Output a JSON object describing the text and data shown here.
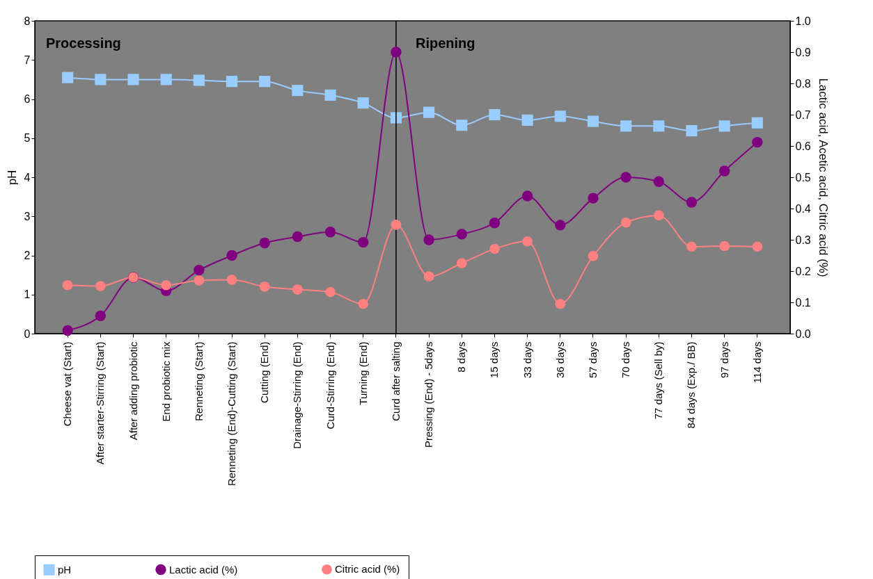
{
  "chart_data": {
    "type": "line",
    "ylabel": "pH",
    "y2label": "Lactic acid, Acetic acid, Citric acid (%)",
    "categories": [
      "Cheese vat (Start)",
      "After starter-Stirring (Start)",
      "After adding probiotic",
      "End probiotic mix",
      "Renneting (Start)",
      "Renneting (End)-Cutting (Start)",
      "Cutting (End)",
      "Drainage-Stirring (End)",
      "Curd-Stirring (End)",
      "Turning (End)",
      "Curd after salting",
      "Pressing (End) - 5days",
      "8 days",
      "15 days",
      "33 days",
      "36 days",
      "57 days",
      "70 days",
      "77 days (Sell by)",
      "84 days (Exp./ BB)",
      "97 days",
      "114 days"
    ],
    "series": [
      {
        "name": "pH",
        "color": "#99ccff",
        "marker": "square",
        "values": [
          6.55,
          6.5,
          6.5,
          6.5,
          6.48,
          6.45,
          6.45,
          6.22,
          6.1,
          5.9,
          5.52,
          5.66,
          5.33,
          5.6,
          5.46,
          5.56,
          5.43,
          5.31,
          5.31,
          5.19,
          5.31,
          5.39
        ]
      },
      {
        "name": "Lactic acid (%)",
        "color": "#800080",
        "marker": "circle",
        "axis": "y2",
        "values": [
          0.01,
          0.057,
          0.18,
          0.137,
          0.203,
          0.25,
          0.29,
          0.31,
          0.325,
          0.292,
          0.9,
          0.3,
          0.318,
          0.354,
          0.44,
          0.347,
          0.433,
          0.5,
          0.486,
          0.42,
          0.52,
          0.612
        ]
      },
      {
        "name": "Citric acid (%)",
        "color": "#ff8080",
        "marker": "circle",
        "axis": "y2",
        "values": [
          0.155,
          0.152,
          0.18,
          0.155,
          0.17,
          0.172,
          0.15,
          0.141,
          0.133,
          0.095,
          0.348,
          0.183,
          0.225,
          0.271,
          0.295,
          0.095,
          0.248,
          0.355,
          0.378,
          0.278,
          0.28,
          0.278
        ]
      }
    ],
    "ylim": [
      0,
      8
    ],
    "yticks": [
      0,
      1,
      2,
      3,
      4,
      5,
      6,
      7,
      8
    ],
    "y2lim": [
      0,
      1
    ],
    "y2ticks": [
      {
        "value": 0,
        "label": "0.0"
      },
      0.1,
      0.2,
      0.3,
      0.4,
      0.5,
      0.6,
      0.7,
      0.8,
      0.9,
      {
        "value": 1,
        "label": "1.0"
      }
    ],
    "ref_lines": [
      {
        "axis": "x",
        "value": "Curd after salting",
        "color": "#000000"
      }
    ],
    "annotations": [
      "Processing",
      "Ripening"
    ],
    "grid": false,
    "legend": "bottom"
  }
}
